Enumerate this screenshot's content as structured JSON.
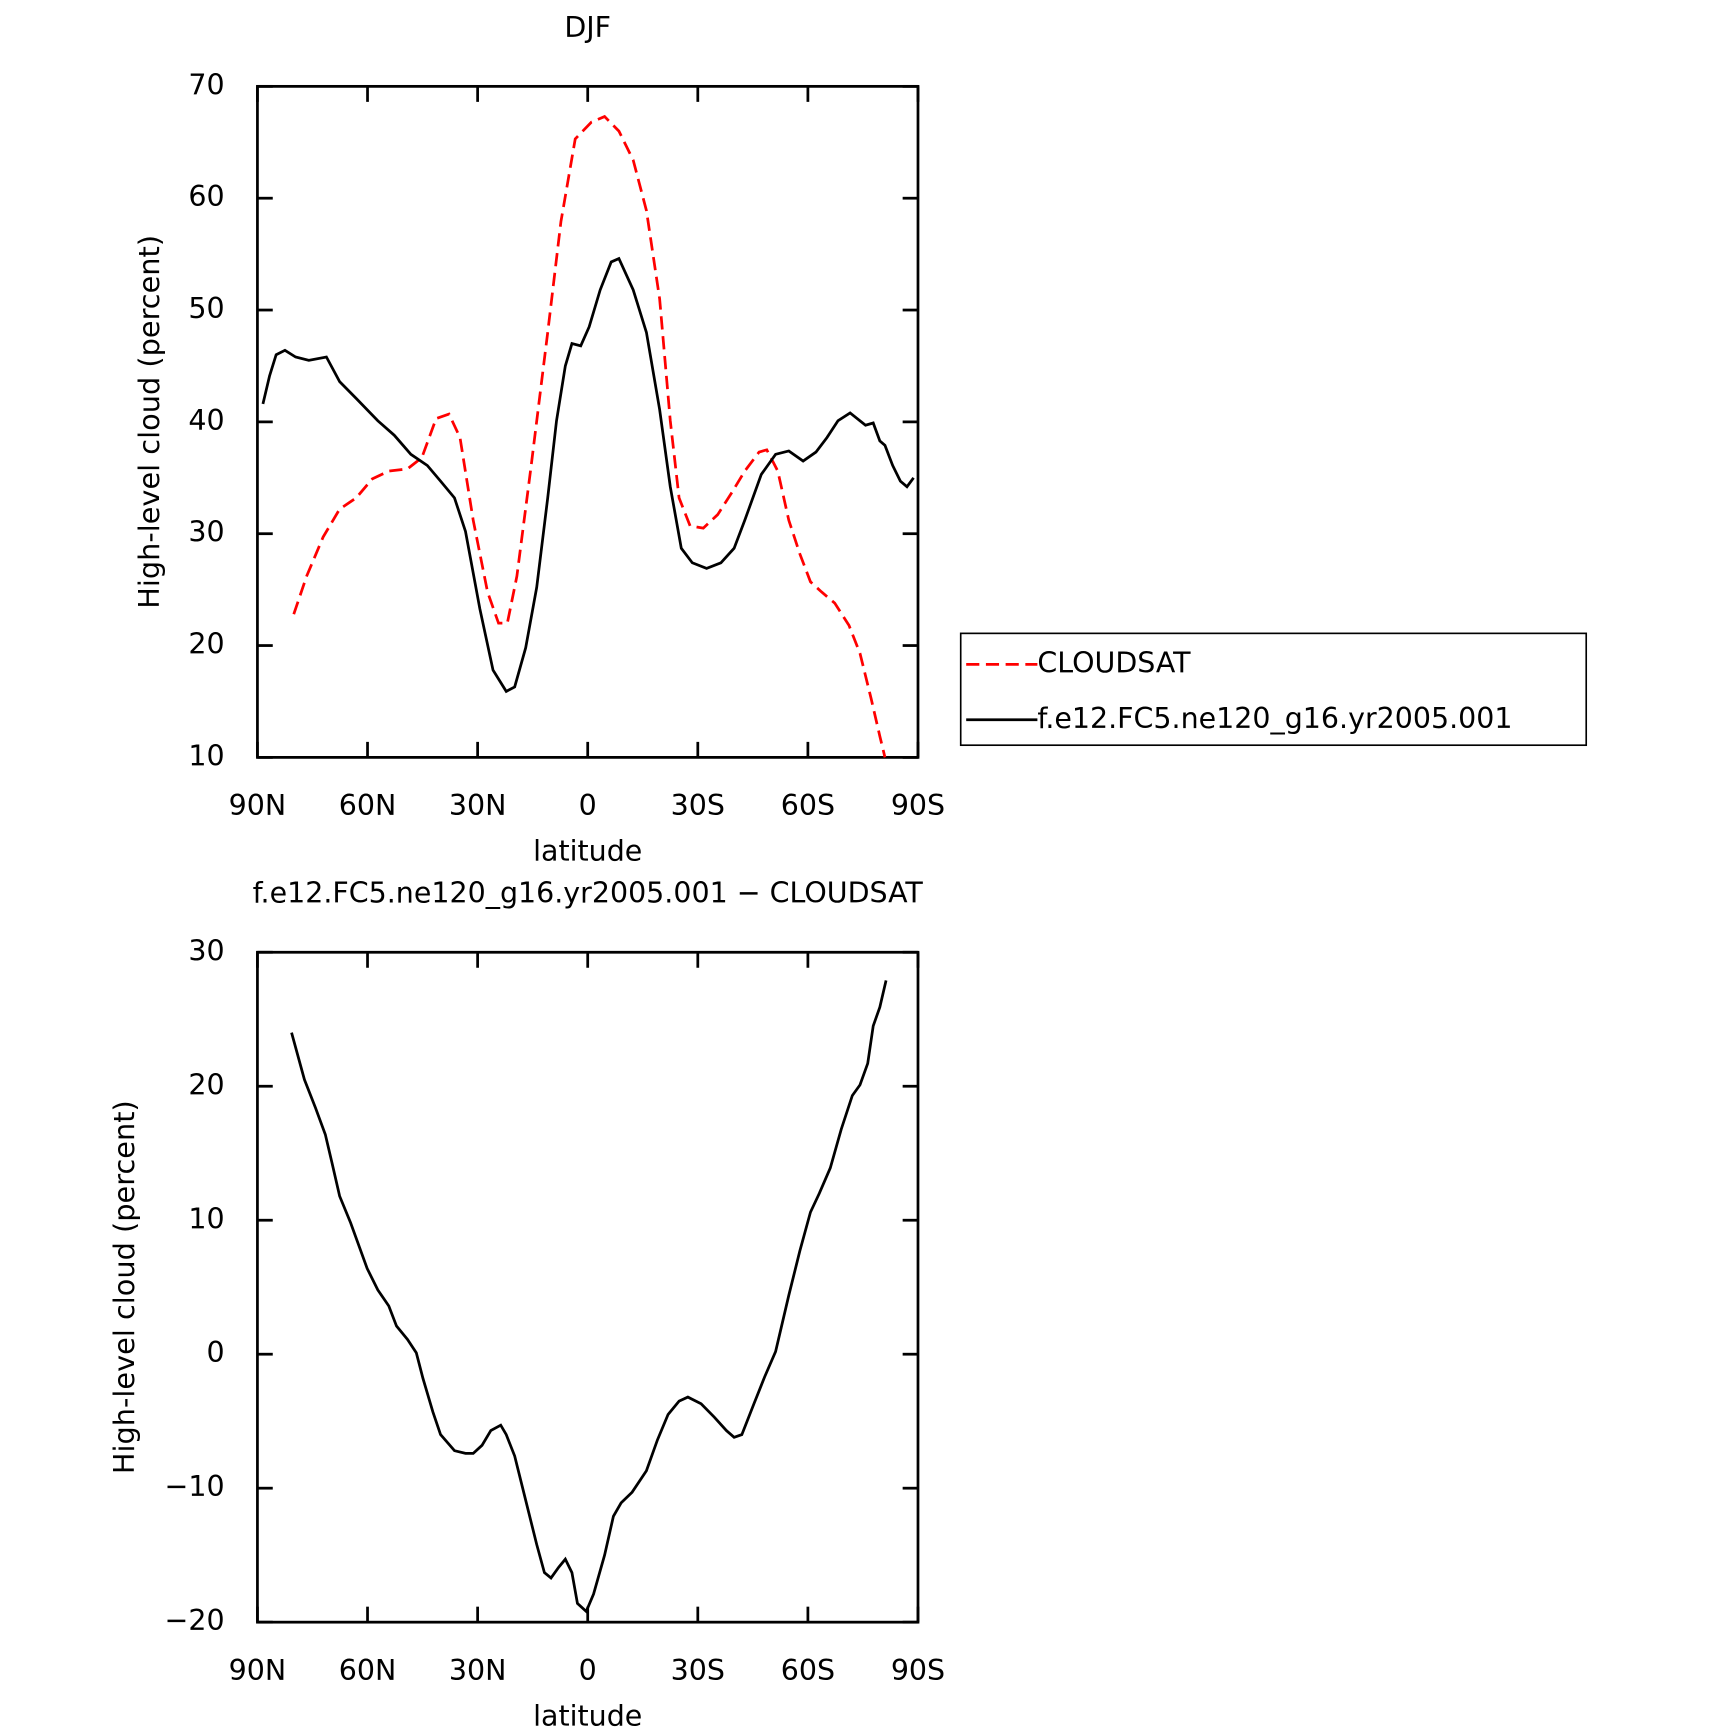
{
  "chart_data": [
    {
      "type": "line",
      "title": "DJF",
      "xlabel": "latitude",
      "ylabel": "High-level cloud (percent)",
      "xlim": [
        90,
        -90
      ],
      "xticks": [
        {
          "value": 90,
          "label": "90N"
        },
        {
          "value": 60,
          "label": "60N"
        },
        {
          "value": 30,
          "label": "30N"
        },
        0,
        {
          "value": -30,
          "label": "30S"
        },
        {
          "value": -60,
          "label": "60S"
        },
        {
          "value": -90,
          "label": "90S"
        }
      ],
      "ylim": [
        10,
        70
      ],
      "yticks": [
        10,
        20,
        30,
        40,
        50,
        60,
        70
      ],
      "legend": "right",
      "series": [
        {
          "name": "CLOUDSAT",
          "color": "#ff0000",
          "linestyle": "dashed",
          "x": [
            80.1,
            76.6,
            72.1,
            67.6,
            63.1,
            58.7,
            54.2,
            49.1,
            45.2,
            41.3,
            37.8,
            34.8,
            31.2,
            27.3,
            24.3,
            21.9,
            19.3,
            15.4,
            10.9,
            7.3,
            3.4,
            -1.0,
            -4.6,
            -8.5,
            -12.4,
            -16.0,
            -19.6,
            -22.5,
            -24.9,
            -27.9,
            -31.5,
            -35.4,
            -39.3,
            -42.8,
            -46.7,
            -48.8,
            -51.8,
            -54.8,
            -57.8,
            -60.7,
            -63.7,
            -67.3,
            -71.2,
            -74.2,
            -77.2,
            -79.6,
            -81.0
          ],
          "values": [
            22.8,
            26.2,
            29.7,
            32.2,
            33.2,
            34.9,
            35.6,
            35.8,
            36.8,
            40.3,
            40.7,
            38.6,
            31.2,
            24.8,
            22.0,
            22.0,
            26.2,
            36.1,
            48.0,
            57.9,
            65.3,
            66.8,
            67.3,
            66.0,
            63.4,
            58.9,
            51.0,
            40.1,
            33.2,
            30.7,
            30.5,
            31.7,
            33.7,
            35.6,
            37.3,
            37.5,
            35.6,
            31.2,
            28.2,
            25.7,
            24.8,
            23.8,
            21.8,
            19.3,
            15.3,
            11.9,
            10.0
          ]
        },
        {
          "name": "f.e12.FC5.ne120_g16.yr2005.001",
          "color": "#000000",
          "linestyle": "solid",
          "x": [
            88.5,
            86.7,
            84.9,
            82.5,
            79.6,
            76.0,
            71.2,
            67.6,
            63.1,
            57.2,
            52.7,
            48.2,
            43.7,
            40.1,
            36.3,
            33.3,
            29.4,
            25.8,
            22.2,
            19.9,
            16.9,
            13.9,
            10.9,
            8.5,
            6.1,
            4.3,
            1.9,
            -0.4,
            -3.4,
            -6.4,
            -8.5,
            -12.4,
            -16.0,
            -19.6,
            -22.5,
            -25.5,
            -28.5,
            -32.4,
            -36.3,
            -39.9,
            -42.8,
            -47.3,
            -51.2,
            -54.8,
            -58.7,
            -62.2,
            -65.2,
            -68.2,
            -71.5,
            -75.7,
            -77.8,
            -79.6,
            -81.0,
            -83.1,
            -85.2,
            -87.0,
            -88.8
          ],
          "values": [
            41.6,
            44.1,
            46.0,
            46.4,
            45.8,
            45.5,
            45.8,
            43.6,
            42.1,
            40.1,
            38.8,
            37.1,
            36.1,
            34.7,
            33.2,
            30.2,
            23.3,
            17.8,
            15.9,
            16.3,
            19.8,
            25.2,
            33.2,
            40.1,
            45.0,
            47.0,
            46.8,
            48.5,
            51.8,
            54.3,
            54.6,
            51.8,
            48.0,
            41.1,
            34.2,
            28.7,
            27.4,
            26.9,
            27.4,
            28.7,
            31.2,
            35.3,
            37.1,
            37.4,
            36.5,
            37.3,
            38.6,
            40.1,
            40.8,
            39.7,
            39.9,
            38.3,
            37.9,
            36.1,
            34.7,
            34.2,
            35.0
          ]
        }
      ]
    },
    {
      "type": "line",
      "title": "f.e12.FC5.ne120_g16.yr2005.001 − CLOUDSAT",
      "xlabel": "latitude",
      "ylabel": "High-level cloud (percent)",
      "xlim": [
        90,
        -90
      ],
      "xticks": [
        {
          "value": 90,
          "label": "90N"
        },
        {
          "value": 60,
          "label": "60N"
        },
        {
          "value": 30,
          "label": "30N"
        },
        0,
        {
          "value": -30,
          "label": "30S"
        },
        {
          "value": -60,
          "label": "60S"
        },
        {
          "value": -90,
          "label": "90S"
        }
      ],
      "ylim": [
        -20,
        30
      ],
      "yticks": [
        {
          "value": -20,
          "label": "−20"
        },
        {
          "value": -10,
          "label": "−10"
        },
        0,
        10,
        20,
        30
      ],
      "series": [
        {
          "color": "#000000",
          "linestyle": "solid",
          "x": [
            80.7,
            77.2,
            74.2,
            71.5,
            69.7,
            67.6,
            64.6,
            60.1,
            57.2,
            54.2,
            52.1,
            49.1,
            46.7,
            44.9,
            42.2,
            40.1,
            36.3,
            33.3,
            31.2,
            28.8,
            26.4,
            23.7,
            22.2,
            19.9,
            16.9,
            13.9,
            11.8,
            10.0,
            7.9,
            6.1,
            4.3,
            2.8,
            0.4,
            -1.6,
            -4.6,
            -7.0,
            -9.1,
            -12.1,
            -16.0,
            -19.0,
            -21.9,
            -24.9,
            -27.3,
            -30.9,
            -34.5,
            -37.8,
            -39.9,
            -42.0,
            -45.3,
            -48.2,
            -51.2,
            -54.8,
            -57.8,
            -60.7,
            -63.1,
            -66.1,
            -69.1,
            -72.1,
            -74.2,
            -76.3,
            -77.8,
            -79.6,
            -81.3
          ],
          "values": [
            24.0,
            20.5,
            18.4,
            16.4,
            14.3,
            11.8,
            9.8,
            6.4,
            4.8,
            3.6,
            2.1,
            1.1,
            0.1,
            -1.8,
            -4.3,
            -6.0,
            -7.2,
            -7.4,
            -7.4,
            -6.8,
            -5.7,
            -5.3,
            -6.0,
            -7.6,
            -10.9,
            -14.2,
            -16.3,
            -16.7,
            -15.9,
            -15.3,
            -16.3,
            -18.6,
            -19.2,
            -17.9,
            -15.0,
            -12.1,
            -11.1,
            -10.3,
            -8.7,
            -6.4,
            -4.5,
            -3.5,
            -3.2,
            -3.7,
            -4.7,
            -5.7,
            -6.2,
            -6.0,
            -3.7,
            -1.7,
            0.2,
            4.4,
            7.7,
            10.6,
            12.0,
            13.9,
            16.8,
            19.3,
            20.1,
            21.7,
            24.5,
            25.9,
            27.9
          ]
        }
      ]
    }
  ]
}
